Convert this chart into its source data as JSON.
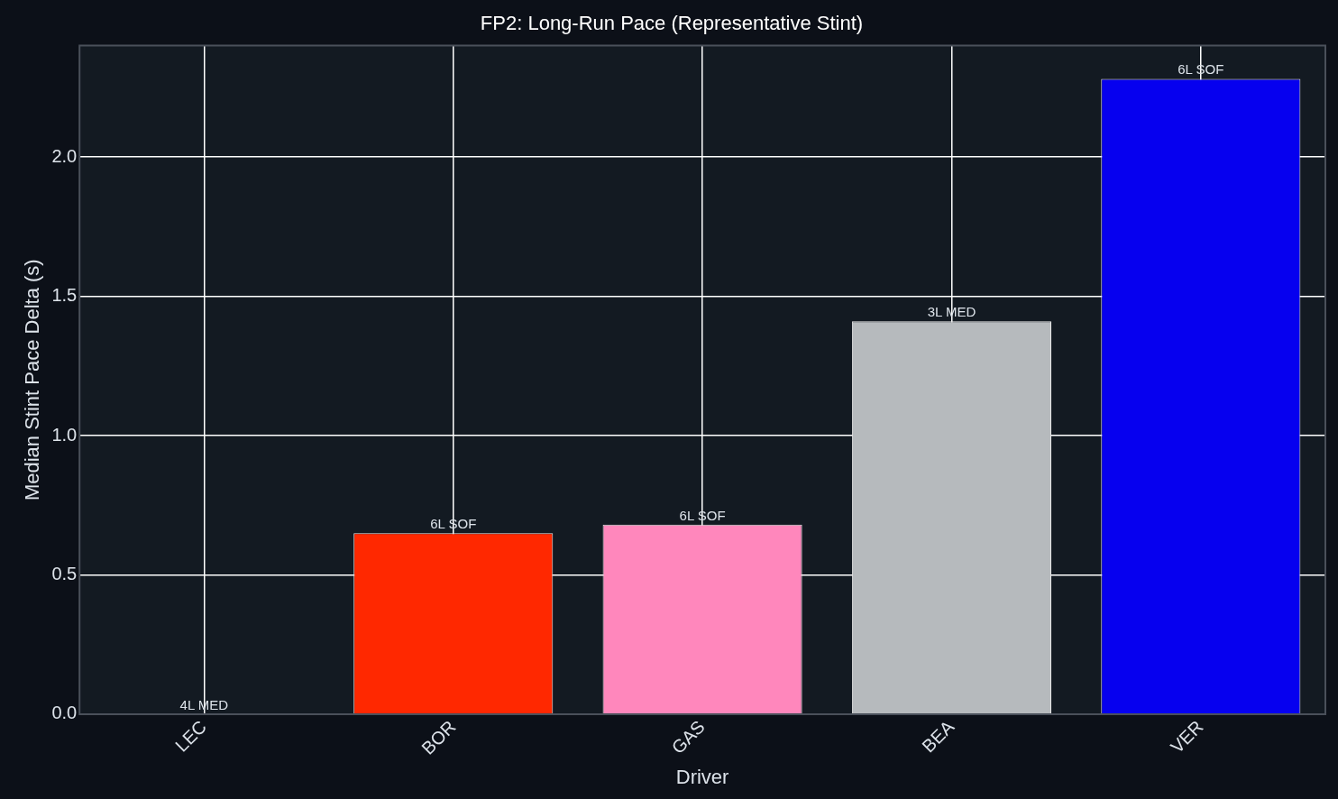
{
  "chart_data": {
    "type": "bar",
    "title": "FP2: Long-Run Pace (Representative Stint)",
    "xlabel": "Driver",
    "ylabel": "Median Stint Pace Delta (s)",
    "categories": [
      "LEC",
      "BOR",
      "GAS",
      "BEA",
      "VER"
    ],
    "values": [
      0,
      0.65,
      0.68,
      1.41,
      2.28
    ],
    "colors": [
      "#e8002d",
      "#ff2800",
      "#ff87bc",
      "#b6babd",
      "#0600ef"
    ],
    "annotations": [
      {
        "text": "4L MED",
        "x": "LEC",
        "y": 0
      },
      {
        "text": "6L SOF",
        "x": "BOR",
        "y": 0.65
      },
      {
        "text": "6L SOF",
        "x": "GAS",
        "y": 0.68
      },
      {
        "text": "3L MED",
        "x": "BEA",
        "y": 1.41
      },
      {
        "text": "6L SOF",
        "x": "VER",
        "y": 2.28
      }
    ],
    "ylim": [
      0,
      2.4
    ],
    "yticks": [
      {
        "value": 0,
        "label": "0.0"
      },
      0.5,
      {
        "value": 1,
        "label": "1.0"
      },
      1.5,
      {
        "value": 2,
        "label": "2.0"
      }
    ],
    "grid": true,
    "legend": false
  }
}
